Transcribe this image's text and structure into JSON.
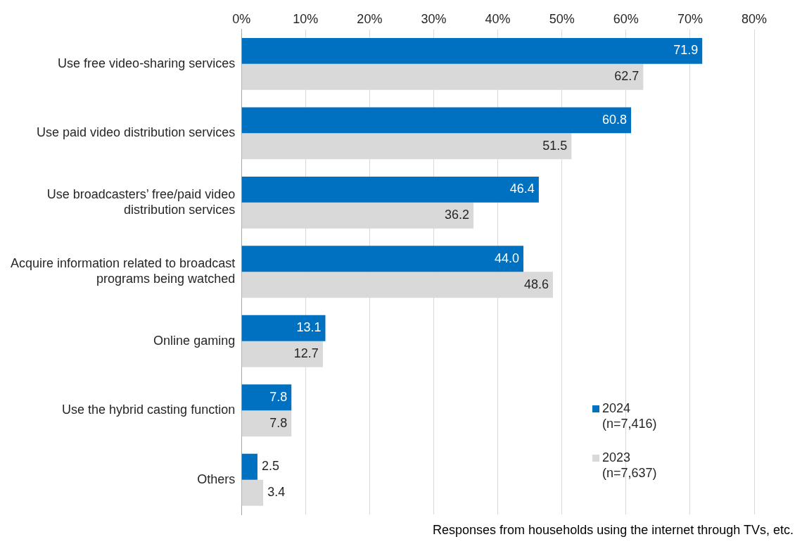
{
  "chart_data": {
    "type": "bar",
    "orientation": "horizontal",
    "categories": [
      "Use free video-sharing services",
      "Use paid video distribution services",
      "Use broadcasters’ free/paid video distribution services",
      "Acquire information related to broadcast programs being watched",
      "Online gaming",
      "Use the hybrid casting function",
      "Others"
    ],
    "series": [
      {
        "name": "2024 (n=7,416)",
        "color": "#0070c0",
        "values": [
          71.9,
          60.8,
          46.4,
          44.0,
          13.1,
          7.8,
          2.5
        ],
        "value_labels": [
          "71.9",
          "60.8",
          "46.4",
          "44.0",
          "13.1",
          "7.8",
          "2.5"
        ]
      },
      {
        "name": "2023 (n=7,637)",
        "color": "#d9d9d9",
        "values": [
          62.7,
          51.5,
          36.2,
          48.6,
          12.7,
          7.8,
          3.4
        ],
        "value_labels": [
          "62.7",
          "51.5",
          "36.2",
          "48.6",
          "12.7",
          "7.8",
          "3.4"
        ]
      }
    ],
    "xlim": [
      0,
      80
    ],
    "xticks": [
      {
        "value": 0,
        "label": "0%"
      },
      {
        "value": 10,
        "label": "10%"
      },
      {
        "value": 20,
        "label": "20%"
      },
      {
        "value": 30,
        "label": "30%"
      },
      {
        "value": 40,
        "label": "40%"
      },
      {
        "value": 50,
        "label": "50%"
      },
      {
        "value": 60,
        "label": "60%"
      },
      {
        "value": 70,
        "label": "70%"
      },
      {
        "value": 80,
        "label": "80%"
      }
    ],
    "grid": "x",
    "legend": "bottom right",
    "annotations": [
      "Responses from households using the internet through TVs, etc."
    ]
  }
}
